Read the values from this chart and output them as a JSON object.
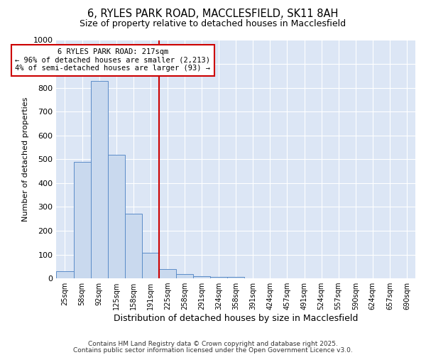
{
  "title": "6, RYLES PARK ROAD, MACCLESFIELD, SK11 8AH",
  "subtitle": "Size of property relative to detached houses in Macclesfield",
  "xlabel": "Distribution of detached houses by size in Macclesfield",
  "ylabel": "Number of detached properties",
  "bar_color": "#c9d9ee",
  "bar_edge_color": "#5b8cc8",
  "categories": [
    "25sqm",
    "58sqm",
    "92sqm",
    "125sqm",
    "158sqm",
    "191sqm",
    "225sqm",
    "258sqm",
    "291sqm",
    "324sqm",
    "358sqm",
    "391sqm",
    "424sqm",
    "457sqm",
    "491sqm",
    "524sqm",
    "557sqm",
    "590sqm",
    "624sqm",
    "657sqm",
    "690sqm"
  ],
  "values": [
    30,
    490,
    830,
    520,
    270,
    108,
    40,
    18,
    8,
    6,
    5,
    0,
    0,
    0,
    0,
    0,
    0,
    0,
    0,
    0,
    0
  ],
  "ylim": [
    0,
    1000
  ],
  "yticks": [
    0,
    100,
    200,
    300,
    400,
    500,
    600,
    700,
    800,
    900,
    1000
  ],
  "vline_x_idx": 5.5,
  "vline_color": "#cc0000",
  "annotation_text_line1": "6 RYLES PARK ROAD: 217sqm",
  "annotation_text_line2": "← 96% of detached houses are smaller (2,213)",
  "annotation_text_line3": "4% of semi-detached houses are larger (93) →",
  "annotation_box_color": "#cc0000",
  "bg_color": "#dce6f5",
  "grid_color": "#ffffff",
  "fig_bg": "#ffffff",
  "footer_line1": "Contains HM Land Registry data © Crown copyright and database right 2025.",
  "footer_line2": "Contains public sector information licensed under the Open Government Licence v3.0."
}
